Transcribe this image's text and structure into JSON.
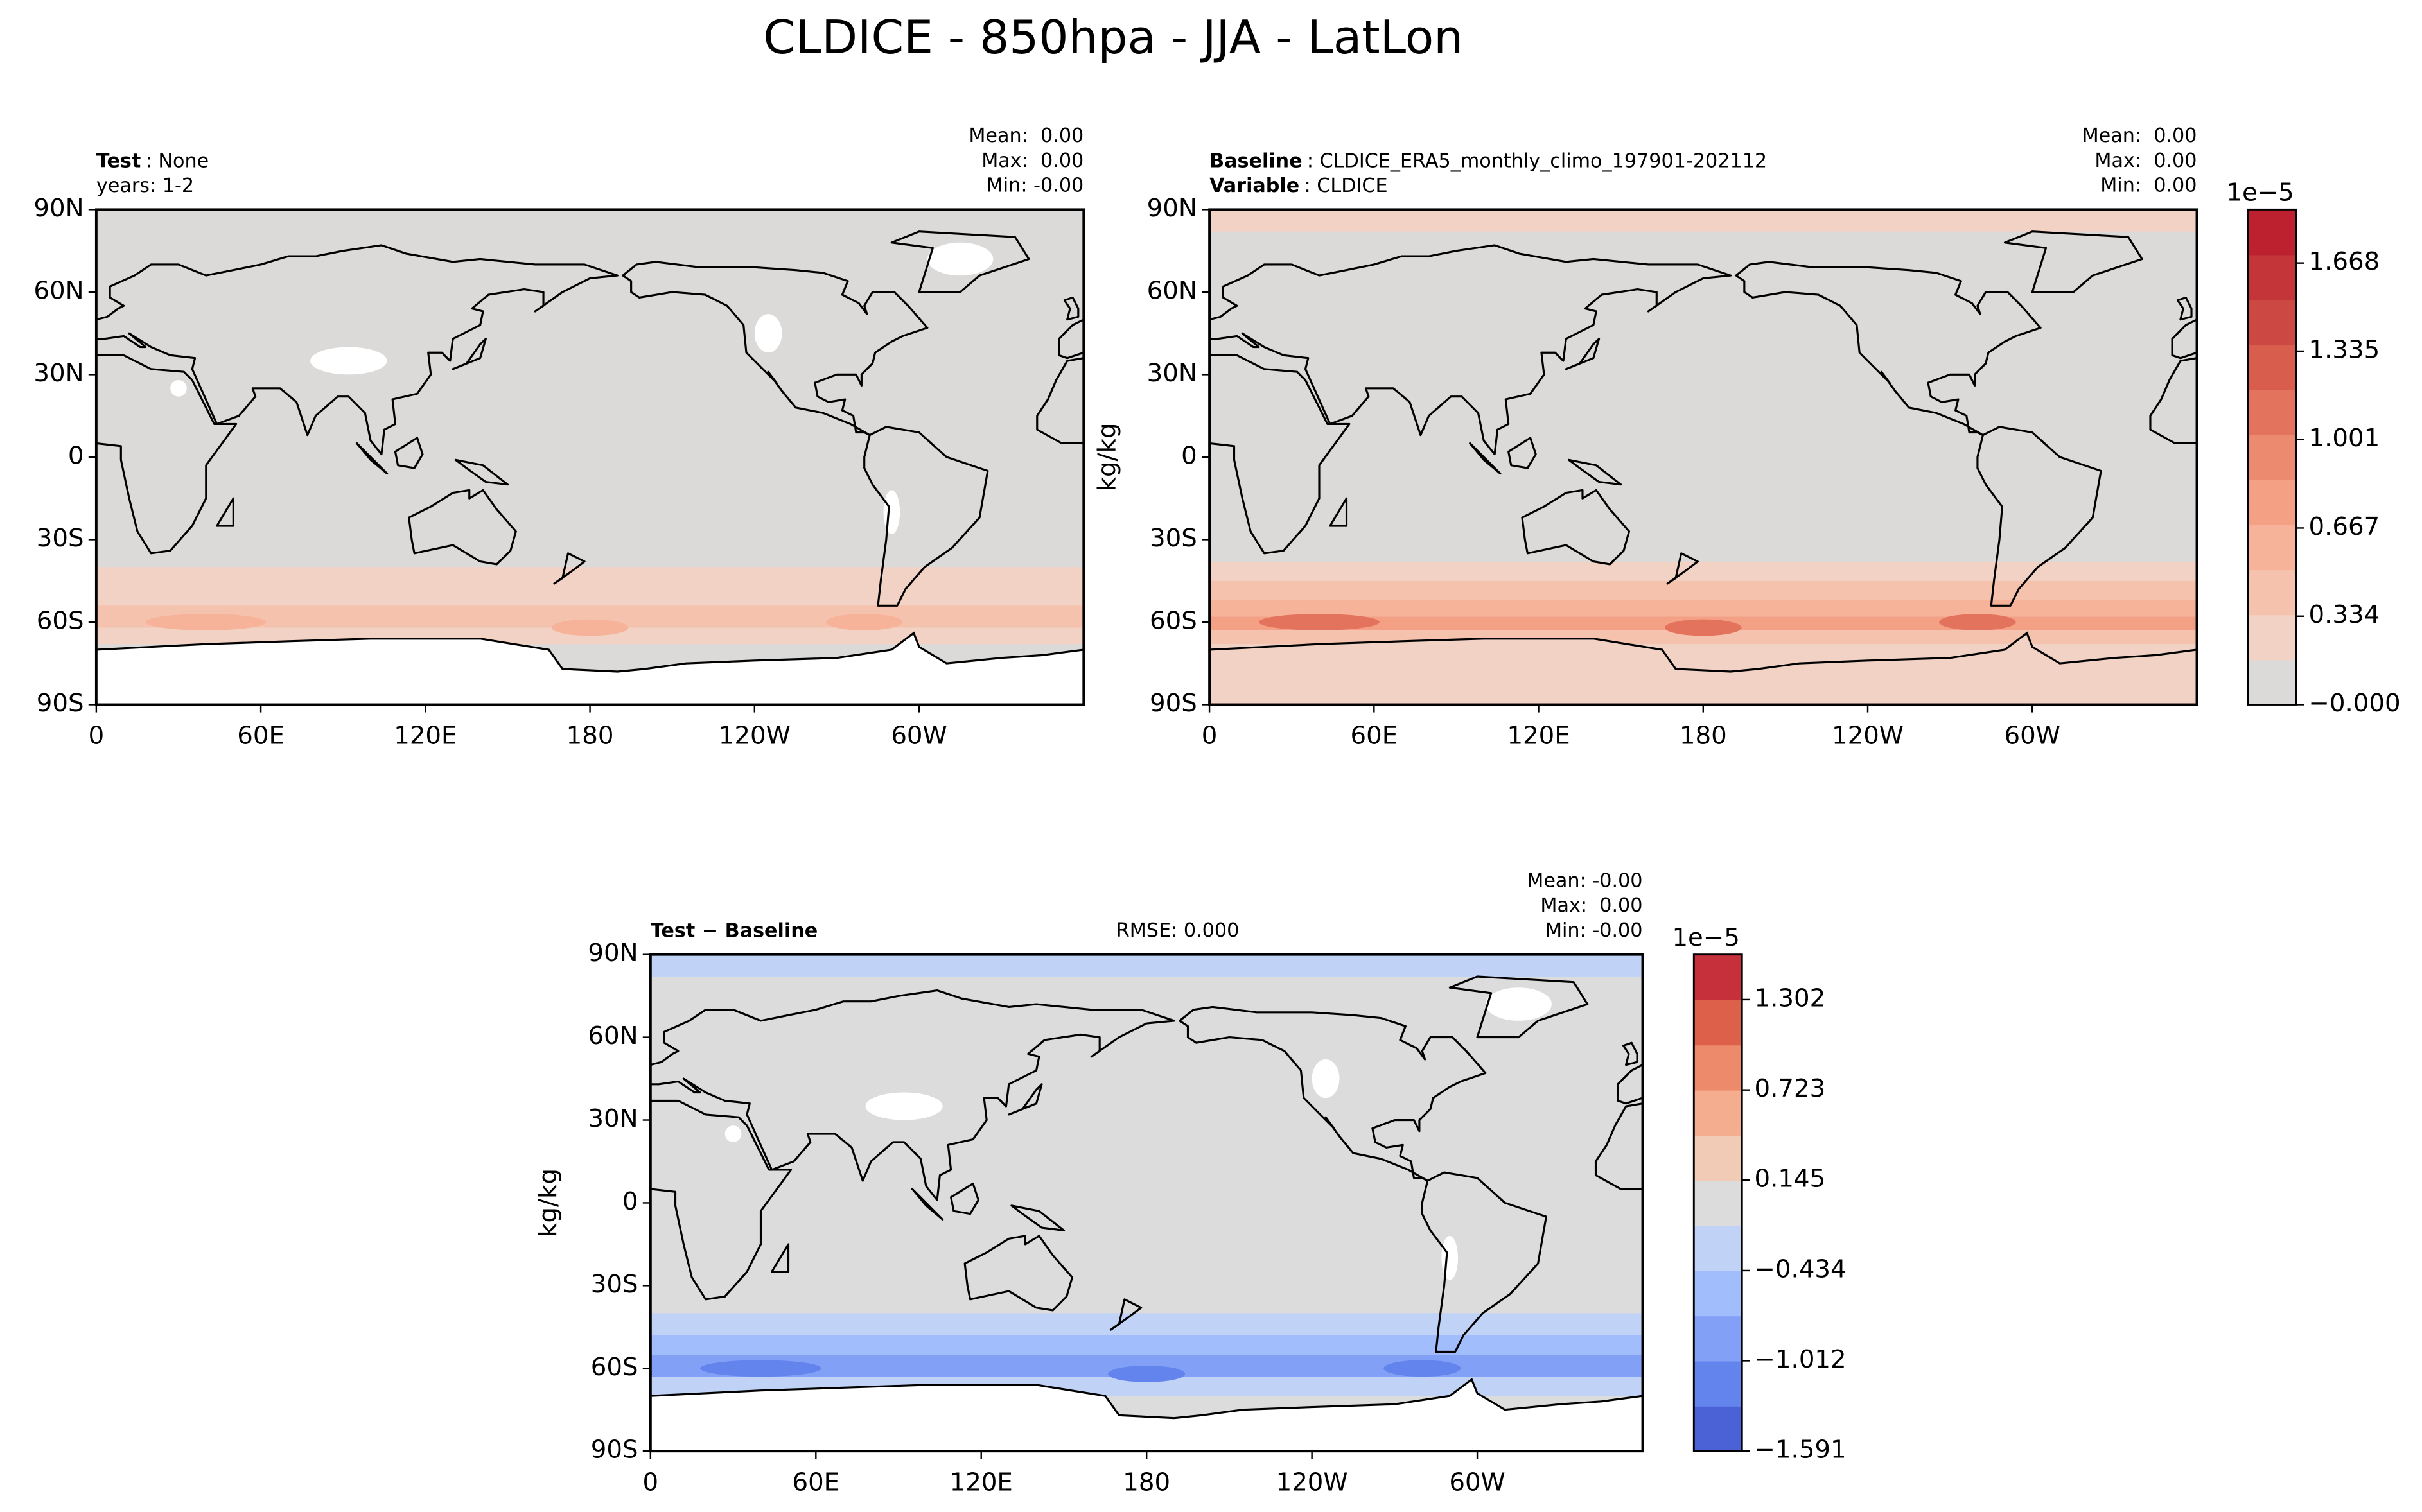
{
  "title": "CLDICE - 850hpa - JJA - LatLon",
  "chart_data": [
    {
      "type": "map",
      "title_lines": [
        {
          "key": "Test",
          "value": ": None"
        },
        {
          "value": "years: 1-2"
        }
      ],
      "stats": [
        "Mean:  0.00",
        "Max:  0.00",
        "Min: -0.00"
      ],
      "xlim": [
        0,
        360
      ],
      "xticks": [
        0,
        {
          "value": 60,
          "label": "60E"
        },
        {
          "value": 120,
          "label": "120E"
        },
        180,
        {
          "value": 240,
          "label": "120W"
        },
        {
          "value": 300,
          "label": "60W"
        }
      ],
      "ylim": [
        -90,
        90
      ],
      "yticks": [
        {
          "value": 90,
          "label": "90N"
        },
        {
          "value": 60,
          "label": "60N"
        },
        {
          "value": 30,
          "label": "30N"
        },
        0,
        {
          "value": -30,
          "label": "30S"
        },
        {
          "value": -60,
          "label": "60S"
        },
        {
          "value": -90,
          "label": "90S"
        }
      ]
    },
    {
      "type": "map",
      "title_lines": [
        {
          "key": "Baseline",
          "value": ": CLDICE_ERA5_monthly_climo_197901-202112"
        },
        {
          "key": "Variable",
          "value": ": CLDICE"
        }
      ],
      "stats": [
        "Mean:  0.00",
        "Max:  0.00",
        "Min:  0.00"
      ],
      "ylabel": "kg/kg",
      "xlim": [
        0,
        360
      ],
      "xticks": [
        0,
        {
          "value": 60,
          "label": "60E"
        },
        {
          "value": 120,
          "label": "120E"
        },
        180,
        {
          "value": 240,
          "label": "120W"
        },
        {
          "value": 300,
          "label": "60W"
        }
      ],
      "ylim": [
        -90,
        90
      ],
      "yticks": [
        {
          "value": 90,
          "label": "90N"
        },
        {
          "value": 60,
          "label": "60N"
        },
        {
          "value": 30,
          "label": "30N"
        },
        0,
        {
          "value": -30,
          "label": "30S"
        },
        {
          "value": -60,
          "label": "60S"
        },
        {
          "value": -90,
          "label": "90S"
        }
      ],
      "colorbar": {
        "offset_label": "1e−5",
        "lim": [
          0,
          1.87
        ],
        "ticks": [
          {
            "value": 0,
            "label": "−0.000"
          },
          0.334,
          0.667,
          1.001,
          1.335,
          1.668
        ],
        "colors": [
          "#dcdad9",
          "#f2d2c4",
          "#f5c3ad",
          "#f6b39a",
          "#f3a084",
          "#ec8a70",
          "#e3735d",
          "#d85d4d",
          "#cc4842",
          "#c33539",
          "#bd2130"
        ]
      }
    },
    {
      "type": "map",
      "title_lines": [
        {
          "key": "Test − Baseline"
        }
      ],
      "rmse": "RMSE: 0.000",
      "stats": [
        "Mean: -0.00",
        "Max:  0.00",
        "Min: -0.00"
      ],
      "ylabel": "kg/kg",
      "xlim": [
        0,
        360
      ],
      "xticks": [
        0,
        {
          "value": 60,
          "label": "60E"
        },
        {
          "value": 120,
          "label": "120E"
        },
        180,
        {
          "value": 240,
          "label": "120W"
        },
        {
          "value": 300,
          "label": "60W"
        }
      ],
      "ylim": [
        -90,
        90
      ],
      "yticks": [
        {
          "value": 90,
          "label": "90N"
        },
        {
          "value": 60,
          "label": "60N"
        },
        {
          "value": 30,
          "label": "30N"
        },
        0,
        {
          "value": -30,
          "label": "30S"
        },
        {
          "value": -60,
          "label": "60S"
        },
        {
          "value": -90,
          "label": "90S"
        }
      ],
      "colorbar": {
        "offset_label": "1e−5",
        "lim": [
          -1.591,
          1.591
        ],
        "ticks": [
          {
            "value": -1.591,
            "label": "−1.591"
          },
          {
            "value": -1.012,
            "label": "−1.012"
          },
          {
            "value": -0.434,
            "label": "−0.434"
          },
          0.145,
          0.723,
          1.302
        ],
        "colors": [
          "#4a62d6",
          "#6384ec",
          "#82a1f6",
          "#a2bdfb",
          "#c0d3f6",
          "#dcdcdc",
          "#f2cbb7",
          "#f5ad8f",
          "#ee8a6c",
          "#dd604b",
          "#c5303a"
        ]
      }
    }
  ]
}
